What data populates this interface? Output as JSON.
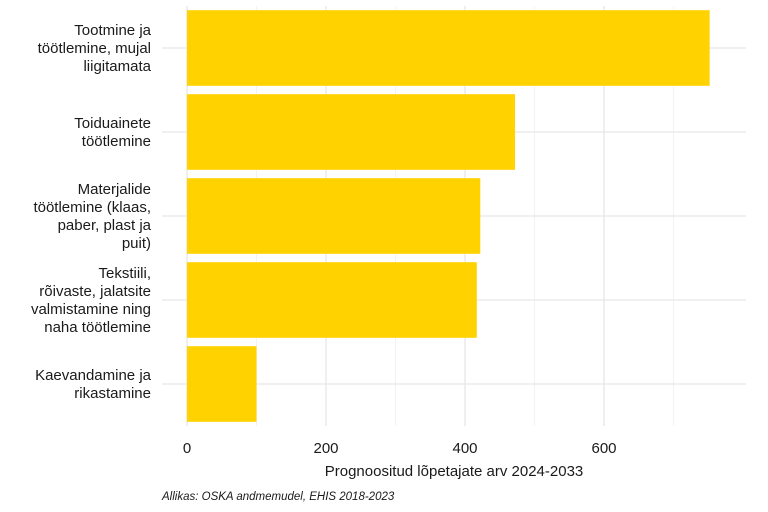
{
  "chart_data": {
    "type": "bar",
    "orientation": "horizontal",
    "categories": [
      [
        "Tootmine ja",
        "töötlemine, mujal",
        "liigitamata"
      ],
      [
        "Toiduainete",
        "töötlemine"
      ],
      [
        "Materjalide",
        "töötlemine (klaas,",
        "paber, plast ja",
        "puit)"
      ],
      [
        "Tekstiili,",
        "rõivaste, jalatsite",
        "valmistamine ning",
        "naha töötlemine"
      ],
      [
        "Kaevandamine ja",
        "rikastamine"
      ]
    ],
    "values": [
      752,
      472,
      422,
      417,
      100
    ],
    "xlim": [
      0,
      790
    ],
    "xticks": [
      0,
      200,
      400,
      600
    ],
    "xlabel": "Prognoositud lõpetajate arv 2024-2033",
    "ylabel": "",
    "caption": "Allikas: OSKA andmemudel, EHIS 2018-2023",
    "bar_color": "#FFD200",
    "grid_major_color": "#e6e6e6",
    "grid_minor_color": "#f2f2f2",
    "grid": true,
    "legend": "none"
  }
}
